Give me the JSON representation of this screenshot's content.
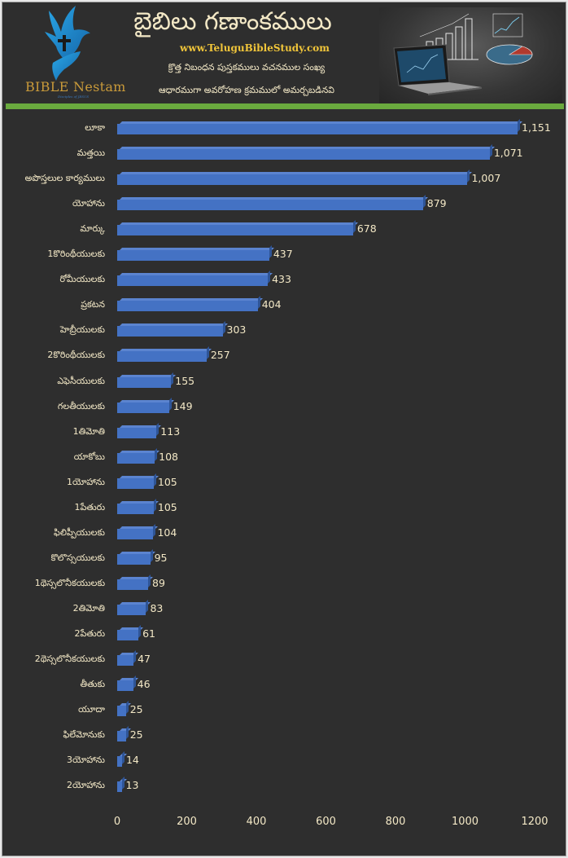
{
  "header": {
    "title": "బైబిలు గణాంకములు",
    "website": "www.TeluguBibleStudy.com",
    "subtitle_line1": "క్రొత్త నిబంధన పుస్తకములు వచనముల సంఖ్య",
    "subtitle_line2": "ఆధారముగా అవరోహణ క్రమములో అమర్చబడినవి",
    "logo_text": "BIBLE Nestam",
    "logo_tagline": "Disciples of JESUS",
    "logo_icon": "dove-cross-hand-icon",
    "photo": "laptop-with-charts-image"
  },
  "colors": {
    "background": "#2e2e2e",
    "bar": "#4472c4",
    "bar_top": "#5b84d0",
    "bar_side": "#2f5597",
    "accent_green": "#6aaa3e",
    "text": "#f3e8c6",
    "website_text": "#f0c53a",
    "logo_text": "#c99a3a"
  },
  "chart_data": {
    "type": "bar",
    "orientation": "horizontal",
    "style": "3d-clustered-bar",
    "title": "బైబిలు గణాంకములు",
    "subtitle": "క్రొత్త నిబంధన పుస్తకములు వచనముల సంఖ్య ఆధారముగా అవరోహణ క్రమములో అమర్చబడినవి",
    "xlabel": "",
    "ylabel": "",
    "xlim": [
      0,
      1200
    ],
    "x_ticks": [
      "0",
      "200",
      "400",
      "600",
      "800",
      "1000",
      "1200"
    ],
    "grid": false,
    "legend": null,
    "categories": [
      "లూకా",
      "మత్తయి",
      "అపొస్తలుల కార్యములు",
      "యోహాను",
      "మార్కు",
      "1కొరింథీయులకు",
      "రోమీయులకు",
      "ప్రకటన",
      "హెబ్రీయులకు",
      "2కొరింథీయులకు",
      "ఎఫెసీయులకు",
      "గలతీయులకు",
      "1తిమోతి",
      "యాకోబు",
      "1యోహాను",
      "1పేతురు",
      "ఫిలిప్పీయులకు",
      "కొలొస్సయులకు",
      "1థెస్సలొనీకయులకు",
      "2తిమోతి",
      "2పేతురు",
      "2థెస్సలొనీకయులకు",
      "తీతుకు",
      "యూదా",
      "ఫిలేమోనుకు",
      "3యోహాను",
      "2యోహాను"
    ],
    "values": [
      1151,
      1071,
      1007,
      879,
      678,
      437,
      433,
      404,
      303,
      257,
      155,
      149,
      113,
      108,
      105,
      105,
      104,
      95,
      89,
      83,
      61,
      47,
      46,
      25,
      25,
      14,
      13
    ],
    "value_labels": [
      "1,151",
      "1,071",
      "1,007",
      "879",
      "678",
      "437",
      "433",
      "404",
      "303",
      "257",
      "155",
      "149",
      "113",
      "108",
      "105",
      "105",
      "104",
      "95",
      "89",
      "83",
      "61",
      "47",
      "46",
      "25",
      "25",
      "14",
      "13"
    ]
  }
}
